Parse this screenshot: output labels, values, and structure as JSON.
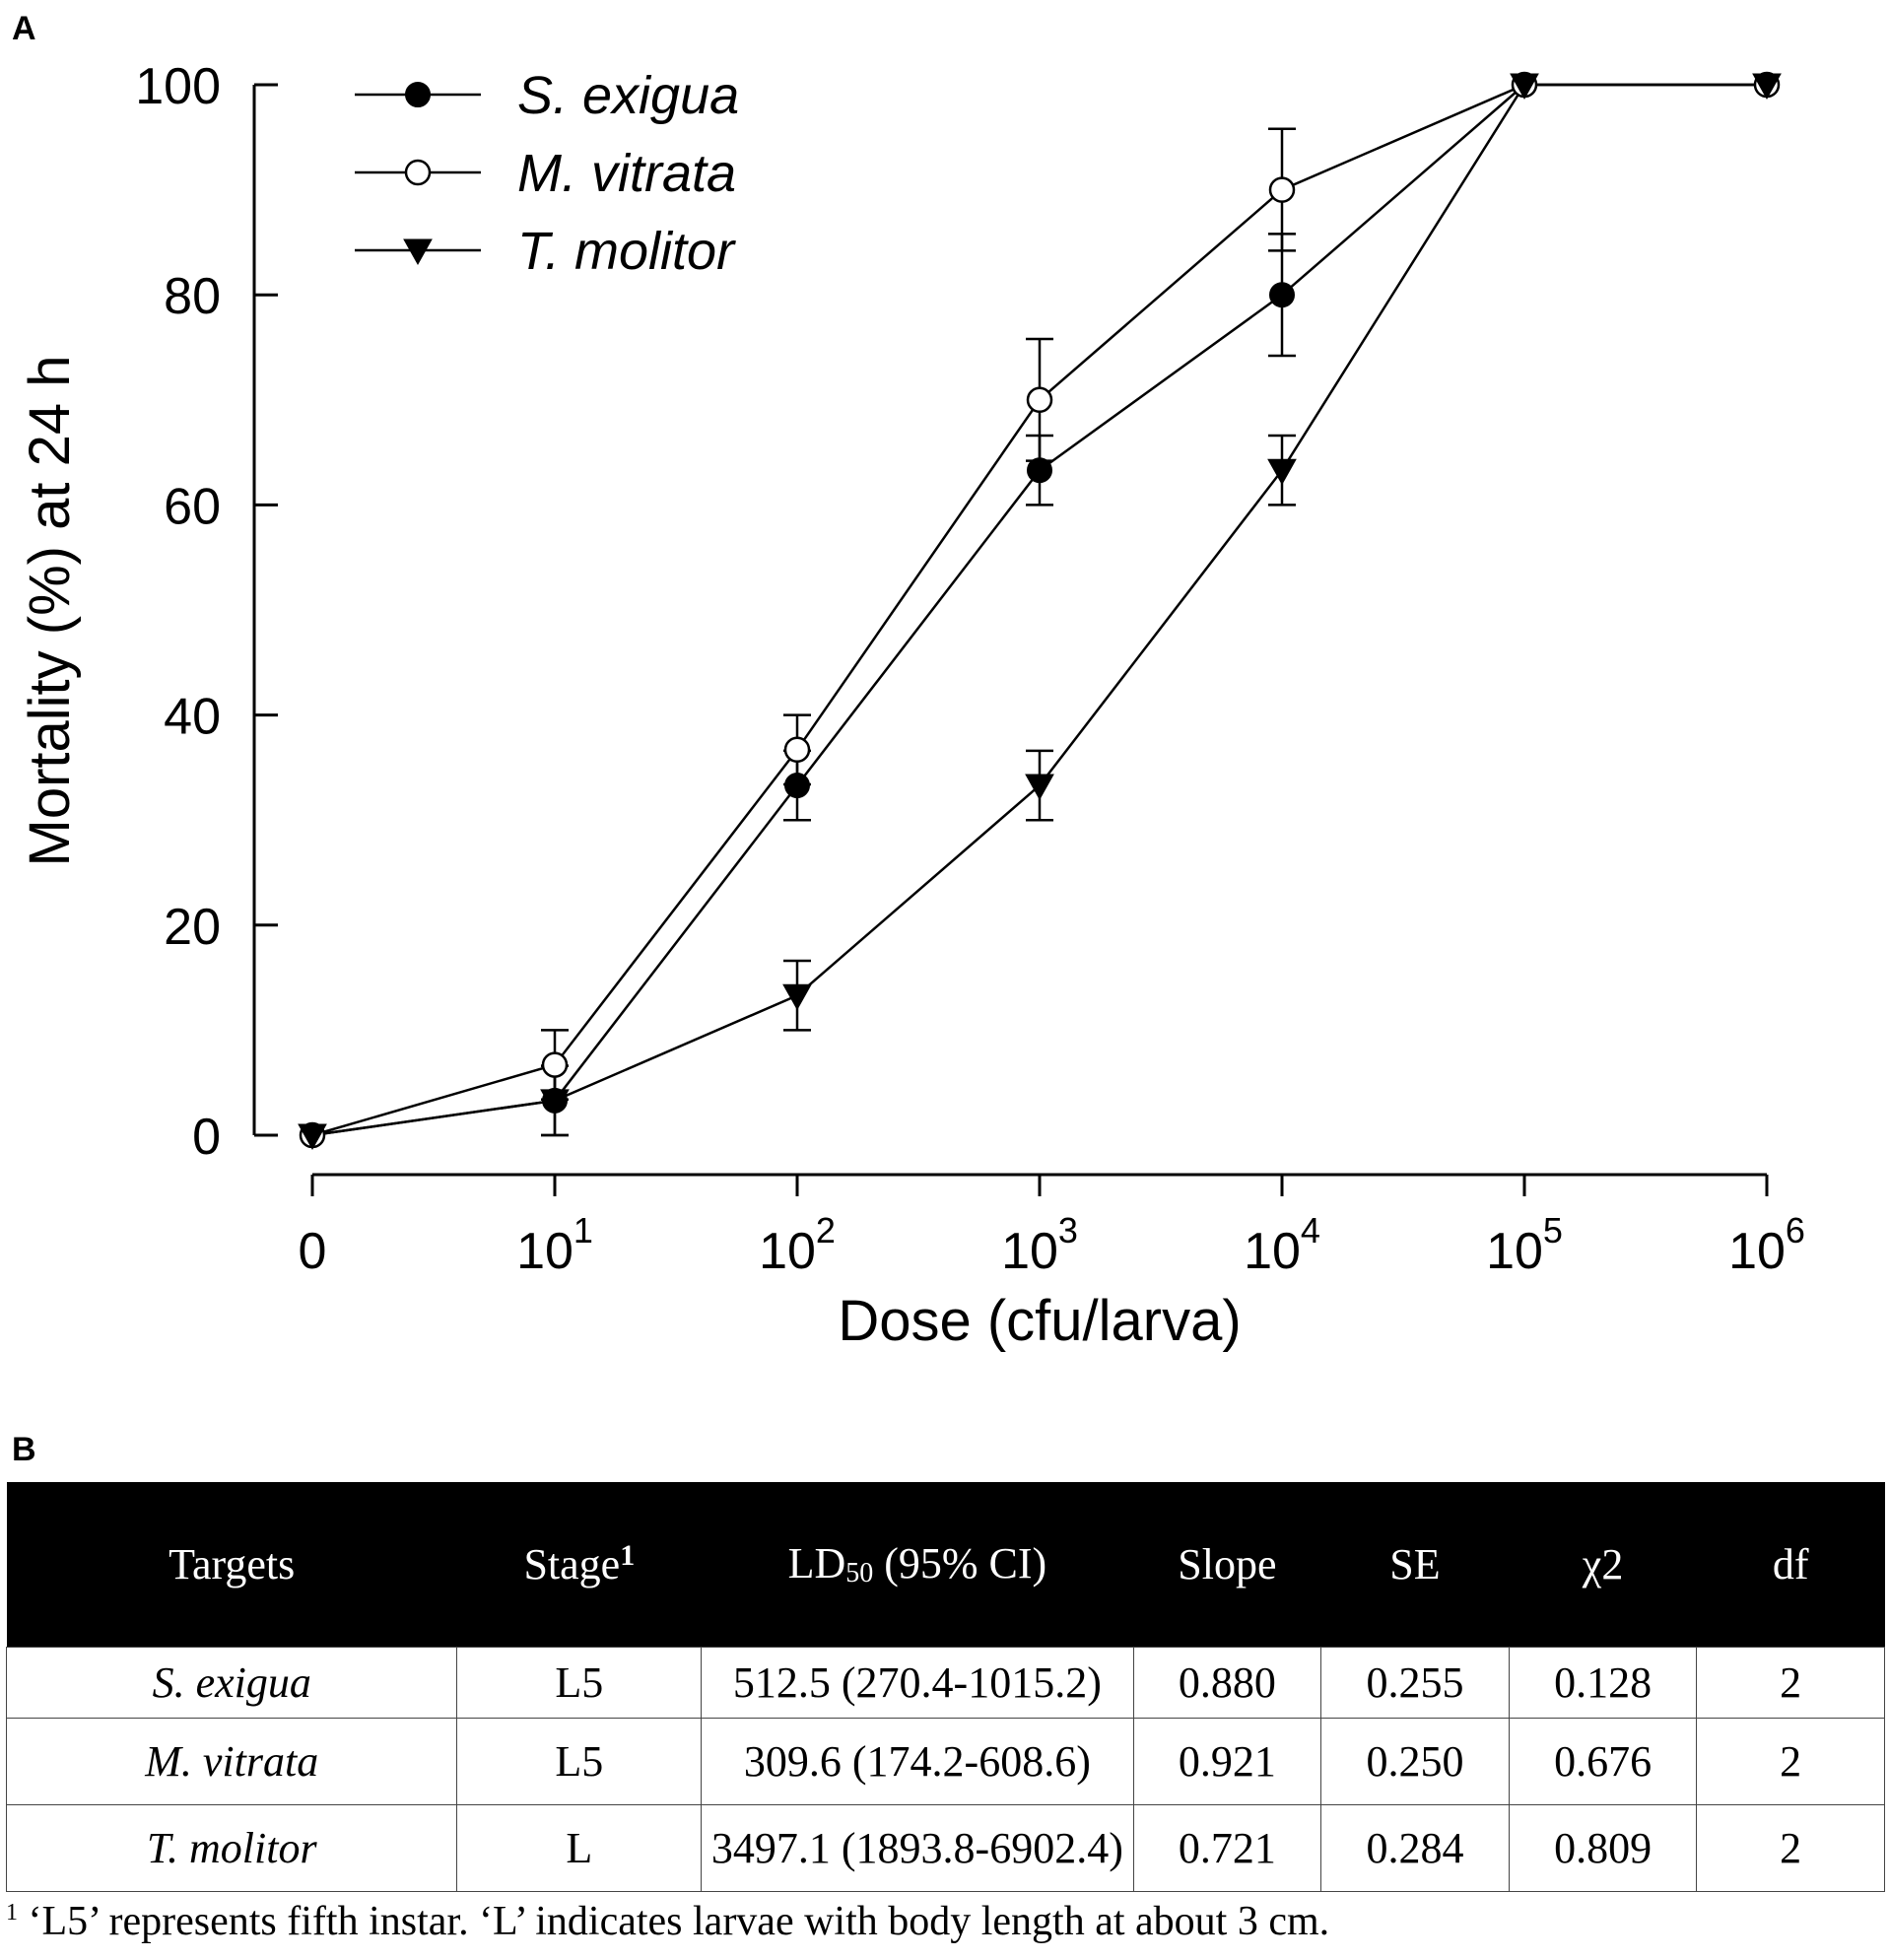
{
  "panel_a_label": "A",
  "panel_b_label": "B",
  "chart_data": {
    "type": "line",
    "title": "",
    "xlabel": "Dose (cfu/larva)",
    "ylabel": "Mortality (%) at 24 h",
    "ylim": [
      0,
      100
    ],
    "yticks": [
      "0",
      "20",
      "40",
      "60",
      "80",
      "100"
    ],
    "x": [
      0,
      1,
      2,
      3,
      4,
      5,
      6
    ],
    "xticks": [
      {
        "base": "0",
        "exp": ""
      },
      {
        "base": "10",
        "exp": "1"
      },
      {
        "base": "10",
        "exp": "2"
      },
      {
        "base": "10",
        "exp": "3"
      },
      {
        "base": "10",
        "exp": "4"
      },
      {
        "base": "10",
        "exp": "5"
      },
      {
        "base": "10",
        "exp": "6"
      }
    ],
    "legend_position": "top-left",
    "series": [
      {
        "name": "S. exigua",
        "marker": "filled-circle",
        "values": [
          0,
          3.3,
          33.3,
          63.3,
          80,
          100,
          100
        ],
        "errors": [
          0,
          3.3,
          3.3,
          3.3,
          5.8,
          0,
          0
        ]
      },
      {
        "name": "M. vitrata",
        "marker": "open-circle",
        "values": [
          0,
          6.7,
          36.7,
          70,
          90,
          100,
          100
        ],
        "errors": [
          0,
          3.3,
          3.3,
          5.8,
          5.8,
          0,
          0
        ]
      },
      {
        "name": "T. molitor",
        "marker": "filled-triangle-down",
        "values": [
          0,
          3.3,
          13.3,
          33.3,
          63.3,
          100,
          100
        ],
        "errors": [
          0,
          3.3,
          3.3,
          3.3,
          3.3,
          0,
          0
        ]
      }
    ]
  },
  "table": {
    "headers": {
      "targets": "Targets",
      "stage": "Stage",
      "stage_sup": "1",
      "ld_prefix": "LD",
      "ld_sub": "50",
      "ld_suffix": " (95% CI)",
      "slope": "Slope",
      "se": "SE",
      "chi": "χ2",
      "df": "df"
    },
    "rows": [
      {
        "target": "S. exigua",
        "stage": "L5",
        "ld50": "512.5 (270.4-1015.2)",
        "slope": "0.880",
        "se": "0.255",
        "chi": "0.128",
        "df": "2"
      },
      {
        "target": "M. vitrata",
        "stage": "L5",
        "ld50": "309.6 (174.2-608.6)",
        "slope": "0.921",
        "se": "0.250",
        "chi": "0.676",
        "df": "2"
      },
      {
        "target": "T. molitor",
        "stage": "L",
        "ld50": "3497.1 (1893.8-6902.4)",
        "slope": "0.721",
        "se": "0.284",
        "chi": "0.809",
        "df": "2"
      }
    ],
    "footnote_mark": "1",
    "footnote": " ‘L5’ represents fifth instar. ‘L’ indicates larvae with body length at about 3 cm."
  }
}
